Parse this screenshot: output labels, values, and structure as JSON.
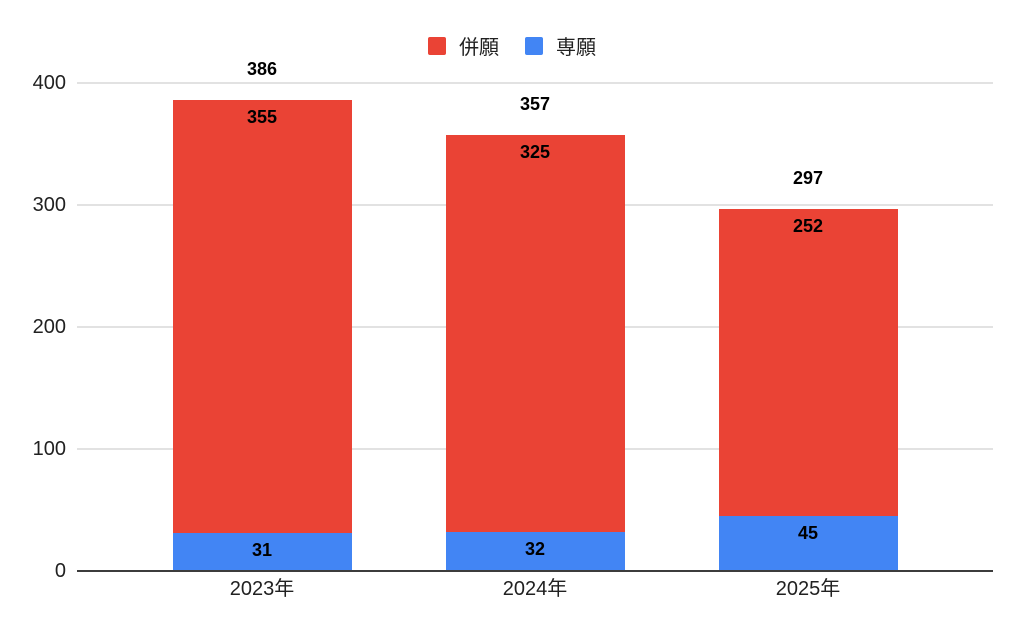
{
  "chart_data": {
    "type": "bar",
    "stacked": true,
    "title": "",
    "categories": [
      "2023年",
      "2024年",
      "2025年"
    ],
    "series": [
      {
        "name": "専願",
        "color": "#4285F4",
        "values": [
          31,
          32,
          45
        ]
      },
      {
        "name": "併願",
        "color": "#EA4335",
        "values": [
          355,
          325,
          252
        ]
      }
    ],
    "totals": [
      386,
      357,
      297
    ],
    "legend": [
      {
        "label": "併願",
        "color": "#EA4335"
      },
      {
        "label": "専願",
        "color": "#4285F4"
      }
    ],
    "legend_position": "top-center",
    "xlabel": "",
    "ylabel": "",
    "ylim": [
      0,
      400
    ],
    "yticks": [
      0,
      100,
      200,
      300,
      400
    ],
    "grid": true,
    "grid_color": "#e2e2e2",
    "axis_line_color": "#3c3c3c",
    "value_label_color": "#000000",
    "tick_label_color": "#212121",
    "background_color": "#ffffff"
  }
}
